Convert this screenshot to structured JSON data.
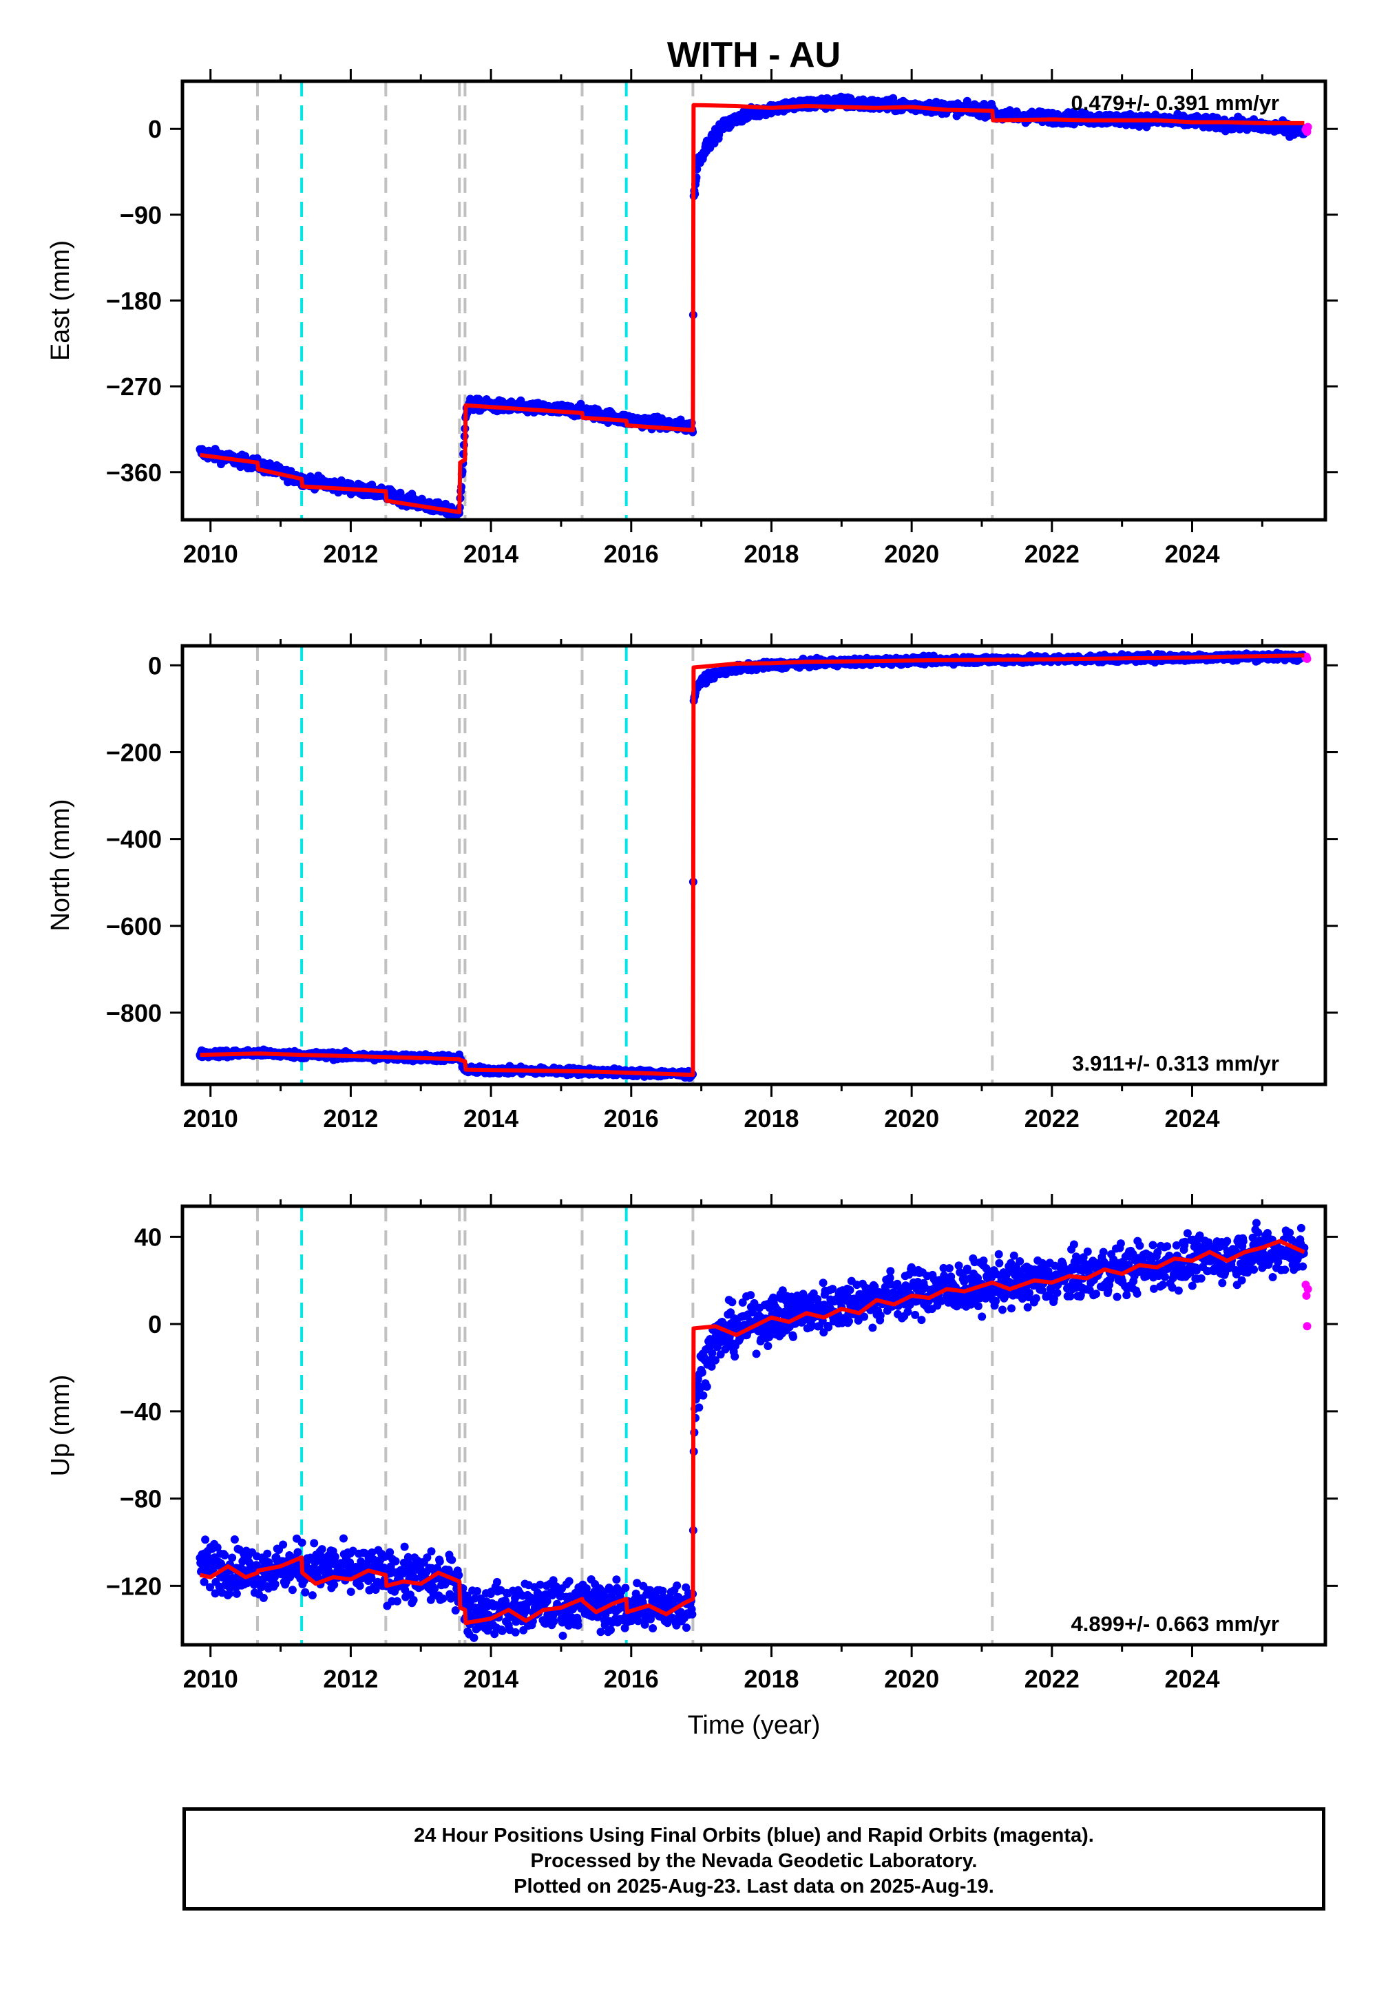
{
  "title": "WITH - AU",
  "xlabel": "Time (year)",
  "footer": [
    "24 Hour Positions Using Final Orbits (blue) and Rapid Orbits (magenta).",
    "Processed by the Nevada Geodetic Laboratory.",
    "Plotted on 2025-Aug-23. Last data on 2025-Aug-19."
  ],
  "colors": {
    "final": "#0000ff",
    "rapid": "#ff00ff",
    "model": "#ff0000",
    "equipment_change": "#c0c0c0",
    "earthquake": "#00e5e5"
  },
  "chart_data": [
    {
      "type": "scatter",
      "component": "east",
      "ylabel": "East (mm)",
      "rate_text": "0.479+/- 0.391 mm/yr",
      "rate_position": "top-right",
      "xlim": [
        2009.6,
        2025.9
      ],
      "ylim": [
        -410,
        50
      ],
      "yticks": [
        0,
        -90,
        -180,
        -270,
        -360
      ],
      "xticks": [
        2010,
        2012,
        2014,
        2016,
        2018,
        2020,
        2022,
        2024
      ],
      "equipment_lines": [
        2010.67,
        2012.5,
        2013.55,
        2013.63,
        2015.3,
        2016.88,
        2021.15
      ],
      "earthquake_lines": [
        2011.3,
        2015.93
      ],
      "model": [
        [
          2009.85,
          -342
        ],
        [
          2010.67,
          -350
        ],
        [
          2010.68,
          -357
        ],
        [
          2011.3,
          -367
        ],
        [
          2011.31,
          -375
        ],
        [
          2012.5,
          -380
        ],
        [
          2012.51,
          -390
        ],
        [
          2013.55,
          -402
        ],
        [
          2013.56,
          -350
        ],
        [
          2013.63,
          -347
        ],
        [
          2013.64,
          -290
        ],
        [
          2015.3,
          -298
        ],
        [
          2015.31,
          -303
        ],
        [
          2015.93,
          -306
        ],
        [
          2015.94,
          -311
        ],
        [
          2016.88,
          -316
        ],
        [
          2016.89,
          25
        ],
        [
          2017.5,
          24
        ],
        [
          2018.0,
          22
        ],
        [
          2018.5,
          24
        ],
        [
          2019.0,
          23
        ],
        [
          2019.5,
          22
        ],
        [
          2020.0,
          23
        ],
        [
          2020.5,
          20
        ],
        [
          2021.15,
          19
        ],
        [
          2021.16,
          9
        ],
        [
          2022.0,
          10
        ],
        [
          2022.5,
          9
        ],
        [
          2023.0,
          9
        ],
        [
          2023.5,
          9
        ],
        [
          2024.0,
          7
        ],
        [
          2024.5,
          7
        ],
        [
          2025.0,
          6
        ],
        [
          2025.6,
          6
        ]
      ],
      "final": [
        [
          2009.85,
          -339
        ],
        [
          2010.67,
          -352
        ],
        [
          2011.3,
          -368
        ],
        [
          2012.5,
          -383
        ],
        [
          2013.55,
          -404
        ],
        [
          2013.64,
          -300
        ],
        [
          2013.7,
          -289
        ],
        [
          2015.3,
          -296
        ],
        [
          2015.93,
          -305
        ],
        [
          2016.88,
          -313
        ],
        [
          2016.89,
          -75
        ],
        [
          2016.95,
          -35
        ],
        [
          2017.1,
          -15
        ],
        [
          2017.3,
          2
        ],
        [
          2017.6,
          14
        ],
        [
          2018.0,
          22
        ],
        [
          2018.5,
          26
        ],
        [
          2019.0,
          28
        ],
        [
          2019.5,
          25
        ],
        [
          2020.0,
          24
        ],
        [
          2020.5,
          22
        ],
        [
          2021.15,
          19
        ],
        [
          2021.2,
          14
        ],
        [
          2022.0,
          12
        ],
        [
          2022.5,
          11
        ],
        [
          2023.0,
          10
        ],
        [
          2023.5,
          9
        ],
        [
          2024.0,
          8
        ],
        [
          2024.5,
          5
        ],
        [
          2025.0,
          3
        ],
        [
          2025.6,
          -2
        ]
      ],
      "final_noise": 3,
      "rapid": [
        [
          2025.62,
          -1
        ],
        [
          2025.63,
          1
        ],
        [
          2025.64,
          -3
        ],
        [
          2025.65,
          2
        ]
      ]
    },
    {
      "type": "scatter",
      "component": "north",
      "ylabel": "North (mm)",
      "rate_text": "3.911+/- 0.313 mm/yr",
      "rate_position": "bottom-right",
      "xlim": [
        2009.6,
        2025.9
      ],
      "ylim": [
        -965,
        45
      ],
      "yticks": [
        0,
        -200,
        -400,
        -600,
        -800
      ],
      "xticks": [
        2010,
        2012,
        2014,
        2016,
        2018,
        2020,
        2022,
        2024
      ],
      "equipment_lines": [
        2010.67,
        2012.5,
        2013.55,
        2013.63,
        2015.3,
        2016.88,
        2021.15
      ],
      "earthquake_lines": [
        2011.3,
        2015.93
      ],
      "model": [
        [
          2009.85,
          -897
        ],
        [
          2010.67,
          -894
        ],
        [
          2011.3,
          -897
        ],
        [
          2012.5,
          -902
        ],
        [
          2013.55,
          -907
        ],
        [
          2013.56,
          -909
        ],
        [
          2013.63,
          -912
        ],
        [
          2013.64,
          -931
        ],
        [
          2015.3,
          -935
        ],
        [
          2015.93,
          -938
        ],
        [
          2016.88,
          -943
        ],
        [
          2016.89,
          -5
        ],
        [
          2017.5,
          4
        ],
        [
          2018.0,
          5
        ],
        [
          2018.5,
          8
        ],
        [
          2019.0,
          9
        ],
        [
          2019.5,
          10
        ],
        [
          2020.0,
          11
        ],
        [
          2020.5,
          12
        ],
        [
          2021.15,
          13
        ],
        [
          2022.0,
          14
        ],
        [
          2022.5,
          15
        ],
        [
          2023.0,
          16
        ],
        [
          2023.5,
          17
        ],
        [
          2024.0,
          18
        ],
        [
          2024.5,
          20
        ],
        [
          2025.0,
          21
        ],
        [
          2025.6,
          23
        ]
      ],
      "final": [
        [
          2009.85,
          -895
        ],
        [
          2010.67,
          -893
        ],
        [
          2011.3,
          -897
        ],
        [
          2012.5,
          -902
        ],
        [
          2013.55,
          -905
        ],
        [
          2013.64,
          -932
        ],
        [
          2015.3,
          -935
        ],
        [
          2015.93,
          -938
        ],
        [
          2016.88,
          -942
        ],
        [
          2016.89,
          -75
        ],
        [
          2016.95,
          -45
        ],
        [
          2017.1,
          -25
        ],
        [
          2017.4,
          -10
        ],
        [
          2017.8,
          -2
        ],
        [
          2018.3,
          3
        ],
        [
          2019.0,
          7
        ],
        [
          2019.5,
          9
        ],
        [
          2020.0,
          11
        ],
        [
          2020.5,
          12
        ],
        [
          2021.15,
          13
        ],
        [
          2022.0,
          14
        ],
        [
          2022.5,
          15
        ],
        [
          2023.0,
          16
        ],
        [
          2023.5,
          17
        ],
        [
          2024.0,
          18
        ],
        [
          2024.5,
          19
        ],
        [
          2025.0,
          20
        ],
        [
          2025.6,
          19
        ]
      ],
      "final_noise": 4,
      "rapid": [
        [
          2025.62,
          17
        ],
        [
          2025.63,
          20
        ],
        [
          2025.64,
          15
        ]
      ]
    },
    {
      "type": "scatter",
      "component": "up",
      "ylabel": "Up (mm)",
      "rate_text": "4.899+/- 0.663 mm/yr",
      "rate_position": "bottom-right",
      "xlim": [
        2009.6,
        2025.9
      ],
      "ylim": [
        -147,
        54
      ],
      "yticks": [
        40,
        0,
        -40,
        -80,
        -120
      ],
      "xticks": [
        2010,
        2012,
        2014,
        2016,
        2018,
        2020,
        2022,
        2024
      ],
      "equipment_lines": [
        2010.67,
        2012.5,
        2013.55,
        2013.63,
        2015.3,
        2016.88,
        2021.15
      ],
      "earthquake_lines": [
        2011.3,
        2015.93
      ],
      "model": [
        [
          2009.85,
          -115
        ],
        [
          2010.0,
          -116
        ],
        [
          2010.25,
          -111
        ],
        [
          2010.5,
          -116
        ],
        [
          2010.67,
          -114
        ],
        [
          2010.68,
          -113
        ],
        [
          2011.0,
          -111
        ],
        [
          2011.3,
          -107
        ],
        [
          2011.31,
          -114
        ],
        [
          2011.5,
          -119
        ],
        [
          2011.75,
          -116
        ],
        [
          2012.0,
          -117
        ],
        [
          2012.25,
          -113
        ],
        [
          2012.5,
          -115
        ],
        [
          2012.51,
          -120
        ],
        [
          2012.75,
          -118
        ],
        [
          2013.0,
          -119
        ],
        [
          2013.25,
          -114
        ],
        [
          2013.55,
          -118
        ],
        [
          2013.56,
          -130
        ],
        [
          2013.63,
          -131
        ],
        [
          2013.64,
          -137
        ],
        [
          2014.0,
          -135
        ],
        [
          2014.25,
          -131
        ],
        [
          2014.5,
          -136
        ],
        [
          2014.75,
          -131
        ],
        [
          2015.0,
          -130
        ],
        [
          2015.3,
          -126
        ],
        [
          2015.31,
          -127
        ],
        [
          2015.5,
          -132
        ],
        [
          2015.75,
          -128
        ],
        [
          2015.93,
          -126
        ],
        [
          2015.94,
          -132
        ],
        [
          2016.25,
          -129
        ],
        [
          2016.5,
          -133
        ],
        [
          2016.75,
          -128
        ],
        [
          2016.88,
          -126
        ],
        [
          2016.89,
          -2
        ],
        [
          2017.2,
          -1
        ],
        [
          2017.5,
          -5
        ],
        [
          2017.75,
          -1
        ],
        [
          2018.0,
          3
        ],
        [
          2018.25,
          1
        ],
        [
          2018.5,
          5
        ],
        [
          2018.75,
          3
        ],
        [
          2019.0,
          7
        ],
        [
          2019.25,
          5
        ],
        [
          2019.5,
          11
        ],
        [
          2019.75,
          9
        ],
        [
          2020.0,
          13
        ],
        [
          2020.25,
          12
        ],
        [
          2020.5,
          16
        ],
        [
          2020.75,
          15
        ],
        [
          2021.15,
          19
        ],
        [
          2021.4,
          16
        ],
        [
          2021.75,
          20
        ],
        [
          2022.0,
          19
        ],
        [
          2022.25,
          22
        ],
        [
          2022.5,
          21
        ],
        [
          2022.75,
          25
        ],
        [
          2023.0,
          23
        ],
        [
          2023.25,
          27
        ],
        [
          2023.5,
          26
        ],
        [
          2023.75,
          30
        ],
        [
          2024.0,
          29
        ],
        [
          2024.25,
          33
        ],
        [
          2024.5,
          29
        ],
        [
          2024.75,
          33
        ],
        [
          2025.0,
          35
        ],
        [
          2025.25,
          38
        ],
        [
          2025.6,
          33
        ]
      ],
      "final": [
        [
          2009.85,
          -110
        ],
        [
          2010.67,
          -113
        ],
        [
          2011.3,
          -111
        ],
        [
          2012.5,
          -115
        ],
        [
          2013.55,
          -118
        ],
        [
          2013.64,
          -132
        ],
        [
          2015.3,
          -128
        ],
        [
          2015.93,
          -130
        ],
        [
          2016.88,
          -128
        ],
        [
          2016.89,
          -50
        ],
        [
          2016.95,
          -28
        ],
        [
          2017.1,
          -12
        ],
        [
          2017.3,
          -5
        ],
        [
          2017.6,
          -1
        ],
        [
          2018.0,
          3
        ],
        [
          2018.5,
          6
        ],
        [
          2019.0,
          9
        ],
        [
          2019.5,
          12
        ],
        [
          2020.0,
          14
        ],
        [
          2020.5,
          16
        ],
        [
          2021.15,
          18
        ],
        [
          2021.5,
          19
        ],
        [
          2022.0,
          20
        ],
        [
          2022.5,
          23
        ],
        [
          2023.0,
          25
        ],
        [
          2023.5,
          27
        ],
        [
          2024.0,
          29
        ],
        [
          2024.5,
          31
        ],
        [
          2025.0,
          33
        ],
        [
          2025.6,
          34
        ]
      ],
      "final_noise": 5.5,
      "rapid": [
        [
          2025.62,
          18
        ],
        [
          2025.63,
          13
        ],
        [
          2025.64,
          -1
        ],
        [
          2025.65,
          16
        ]
      ]
    }
  ]
}
